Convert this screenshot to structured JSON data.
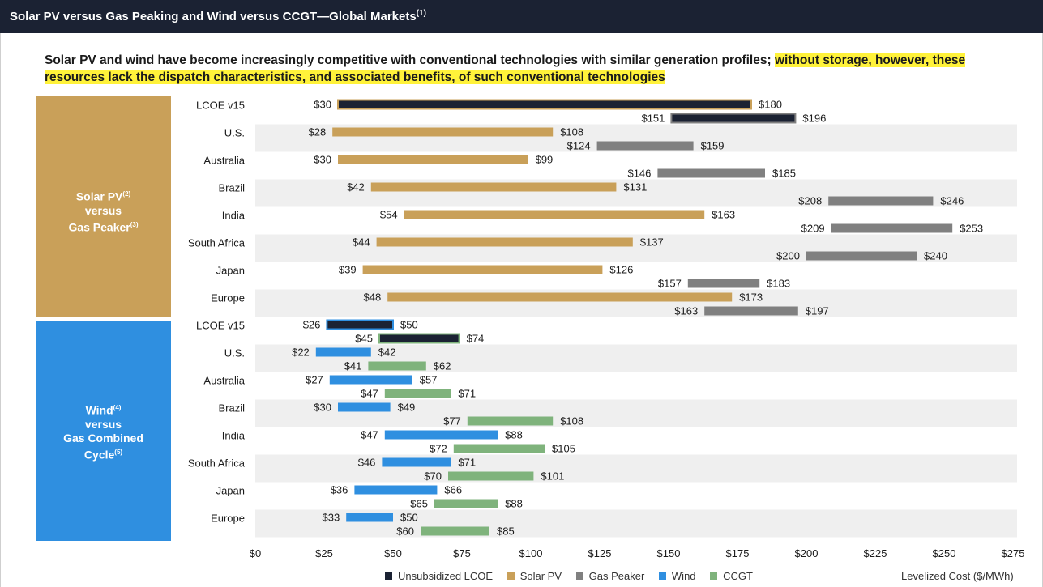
{
  "header": {
    "title": "Solar PV versus Gas Peaking and Wind versus CCGT—Global Markets",
    "title_note": "(1)"
  },
  "subtitle": {
    "plain": "Solar PV and wind have become increasingly competitive with conventional technologies with similar generation profiles; ",
    "highlighted": "without storage, however, these resources lack the dispatch characteristics, and associated benefits, of such conventional technologies",
    "highlight_color": "#fff23a"
  },
  "groups": {
    "solar": {
      "line1": "Solar PV",
      "note1": "(2)",
      "line2": "versus",
      "line3": "Gas Peaker",
      "note3": "(3)",
      "color": "#c9a059"
    },
    "wind": {
      "line1": "Wind",
      "note1": "(4)",
      "line2": "versus",
      "line3": "Gas Combined",
      "line4": "Cycle",
      "note4": "(5)",
      "color": "#2f8fe0"
    }
  },
  "legend": {
    "items": [
      {
        "label": "Unsubsidized LCOE",
        "color": "#1b2233"
      },
      {
        "label": "Solar PV",
        "color": "#c9a059"
      },
      {
        "label": "Gas Peaker",
        "color": "#808080"
      },
      {
        "label": "Wind",
        "color": "#2f8fe0"
      },
      {
        "label": "CCGT",
        "color": "#7fb37c"
      }
    ],
    "unit": "Levelized Cost ($/MWh)"
  },
  "chart_data": {
    "type": "bar",
    "orientation": "horizontal-range",
    "xlim": [
      0,
      275
    ],
    "xticks": [
      "$0",
      "$25",
      "$50",
      "$75",
      "$100",
      "$125",
      "$150",
      "$175",
      "$200",
      "$225",
      "$250",
      "$275"
    ],
    "xtick_values": [
      0,
      25,
      50,
      75,
      100,
      125,
      150,
      175,
      200,
      225,
      250,
      275
    ],
    "xlabel": "Levelized Cost ($/MWh)",
    "legend_position": "bottom",
    "colors": {
      "lcoe": "#1b2233",
      "solar": "#c9a059",
      "gas_peaker": "#808080",
      "wind": "#2f8fe0",
      "ccgt": "#7fb37c"
    },
    "categories": [
      "LCOE v15",
      "U.S.",
      "Australia",
      "Brazil",
      "India",
      "South Africa",
      "Japan",
      "Europe",
      "LCOE v15",
      "U.S.",
      "Australia",
      "Brazil",
      "India",
      "South Africa",
      "Japan",
      "Europe"
    ],
    "rows": [
      {
        "label": "LCOE v15",
        "group": "solar",
        "bars": [
          {
            "series": "Solar PV",
            "low": 30,
            "high": 180,
            "low_label": "$30",
            "high_label": "$180",
            "fill": "#1b2233",
            "outline": "#c9a059"
          },
          {
            "series": "Gas Peaker",
            "low": 151,
            "high": 196,
            "low_label": "$151",
            "high_label": "$196",
            "fill": "#1b2233",
            "outline": "#808080"
          }
        ]
      },
      {
        "label": "U.S.",
        "group": "solar",
        "bars": [
          {
            "series": "Solar PV",
            "low": 28,
            "high": 108,
            "low_label": "$28",
            "high_label": "$108",
            "fill": "#c9a059"
          },
          {
            "series": "Gas Peaker",
            "low": 124,
            "high": 159,
            "low_label": "$124",
            "high_label": "$159",
            "fill": "#808080"
          }
        ]
      },
      {
        "label": "Australia",
        "group": "solar",
        "bars": [
          {
            "series": "Solar PV",
            "low": 30,
            "high": 99,
            "low_label": "$30",
            "high_label": "$99",
            "fill": "#c9a059"
          },
          {
            "series": "Gas Peaker",
            "low": 146,
            "high": 185,
            "low_label": "$146",
            "high_label": "$185",
            "fill": "#808080"
          }
        ]
      },
      {
        "label": "Brazil",
        "group": "solar",
        "bars": [
          {
            "series": "Solar PV",
            "low": 42,
            "high": 131,
            "low_label": "$42",
            "high_label": "$131",
            "fill": "#c9a059"
          },
          {
            "series": "Gas Peaker",
            "low": 208,
            "high": 246,
            "low_label": "$208",
            "high_label": "$246",
            "fill": "#808080"
          }
        ]
      },
      {
        "label": "India",
        "group": "solar",
        "bars": [
          {
            "series": "Solar PV",
            "low": 54,
            "high": 163,
            "low_label": "$54",
            "high_label": "$163",
            "fill": "#c9a059"
          },
          {
            "series": "Gas Peaker",
            "low": 209,
            "high": 253,
            "low_label": "$209",
            "high_label": "$253",
            "fill": "#808080"
          }
        ]
      },
      {
        "label": "South Africa",
        "group": "solar",
        "bars": [
          {
            "series": "Solar PV",
            "low": 44,
            "high": 137,
            "low_label": "$44",
            "high_label": "$137",
            "fill": "#c9a059"
          },
          {
            "series": "Gas Peaker",
            "low": 200,
            "high": 240,
            "low_label": "$200",
            "high_label": "$240",
            "fill": "#808080"
          }
        ]
      },
      {
        "label": "Japan",
        "group": "solar",
        "bars": [
          {
            "series": "Solar PV",
            "low": 39,
            "high": 126,
            "low_label": "$39",
            "high_label": "$126",
            "fill": "#c9a059"
          },
          {
            "series": "Gas Peaker",
            "low": 157,
            "high": 183,
            "low_label": "$157",
            "high_label": "$183",
            "fill": "#808080"
          }
        ]
      },
      {
        "label": "Europe",
        "group": "solar",
        "bars": [
          {
            "series": "Solar PV",
            "low": 48,
            "high": 173,
            "low_label": "$48",
            "high_label": "$173",
            "fill": "#c9a059"
          },
          {
            "series": "Gas Peaker",
            "low": 163,
            "high": 197,
            "low_label": "$163",
            "high_label": "$197",
            "fill": "#808080"
          }
        ]
      },
      {
        "label": "LCOE v15",
        "group": "wind",
        "bars": [
          {
            "series": "Wind",
            "low": 26,
            "high": 50,
            "low_label": "$26",
            "high_label": "$50",
            "fill": "#1b2233",
            "outline": "#2f8fe0"
          },
          {
            "series": "CCGT",
            "low": 45,
            "high": 74,
            "low_label": "$45",
            "high_label": "$74",
            "fill": "#1b2233",
            "outline": "#7fb37c"
          }
        ]
      },
      {
        "label": "U.S.",
        "group": "wind",
        "bars": [
          {
            "series": "Wind",
            "low": 22,
            "high": 42,
            "low_label": "$22",
            "high_label": "$42",
            "fill": "#2f8fe0"
          },
          {
            "series": "CCGT",
            "low": 41,
            "high": 62,
            "low_label": "$41",
            "high_label": "$62",
            "fill": "#7fb37c"
          }
        ]
      },
      {
        "label": "Australia",
        "group": "wind",
        "bars": [
          {
            "series": "Wind",
            "low": 27,
            "high": 57,
            "low_label": "$27",
            "high_label": "$57",
            "fill": "#2f8fe0"
          },
          {
            "series": "CCGT",
            "low": 47,
            "high": 71,
            "low_label": "$47",
            "high_label": "$71",
            "fill": "#7fb37c"
          }
        ]
      },
      {
        "label": "Brazil",
        "group": "wind",
        "bars": [
          {
            "series": "Wind",
            "low": 30,
            "high": 49,
            "low_label": "$30",
            "high_label": "$49",
            "fill": "#2f8fe0"
          },
          {
            "series": "CCGT",
            "low": 77,
            "high": 108,
            "low_label": "$77",
            "high_label": "$108",
            "fill": "#7fb37c"
          }
        ]
      },
      {
        "label": "India",
        "group": "wind",
        "bars": [
          {
            "series": "Wind",
            "low": 47,
            "high": 88,
            "low_label": "$47",
            "high_label": "$88",
            "fill": "#2f8fe0"
          },
          {
            "series": "CCGT",
            "low": 72,
            "high": 105,
            "low_label": "$72",
            "high_label": "$105",
            "fill": "#7fb37c"
          }
        ]
      },
      {
        "label": "South Africa",
        "group": "wind",
        "bars": [
          {
            "series": "Wind",
            "low": 46,
            "high": 71,
            "low_label": "$46",
            "high_label": "$71",
            "fill": "#2f8fe0"
          },
          {
            "series": "CCGT",
            "low": 70,
            "high": 101,
            "low_label": "$70",
            "high_label": "$101",
            "fill": "#7fb37c"
          }
        ]
      },
      {
        "label": "Japan",
        "group": "wind",
        "bars": [
          {
            "series": "Wind",
            "low": 36,
            "high": 66,
            "low_label": "$36",
            "high_label": "$66",
            "fill": "#2f8fe0"
          },
          {
            "series": "CCGT",
            "low": 65,
            "high": 88,
            "low_label": "$65",
            "high_label": "$88",
            "fill": "#7fb37c"
          }
        ]
      },
      {
        "label": "Europe",
        "group": "wind",
        "bars": [
          {
            "series": "Wind",
            "low": 33,
            "high": 50,
            "low_label": "$33",
            "high_label": "$50",
            "fill": "#2f8fe0"
          },
          {
            "series": "CCGT",
            "low": 60,
            "high": 85,
            "low_label": "$60",
            "high_label": "$85",
            "fill": "#7fb37c"
          }
        ]
      }
    ]
  }
}
